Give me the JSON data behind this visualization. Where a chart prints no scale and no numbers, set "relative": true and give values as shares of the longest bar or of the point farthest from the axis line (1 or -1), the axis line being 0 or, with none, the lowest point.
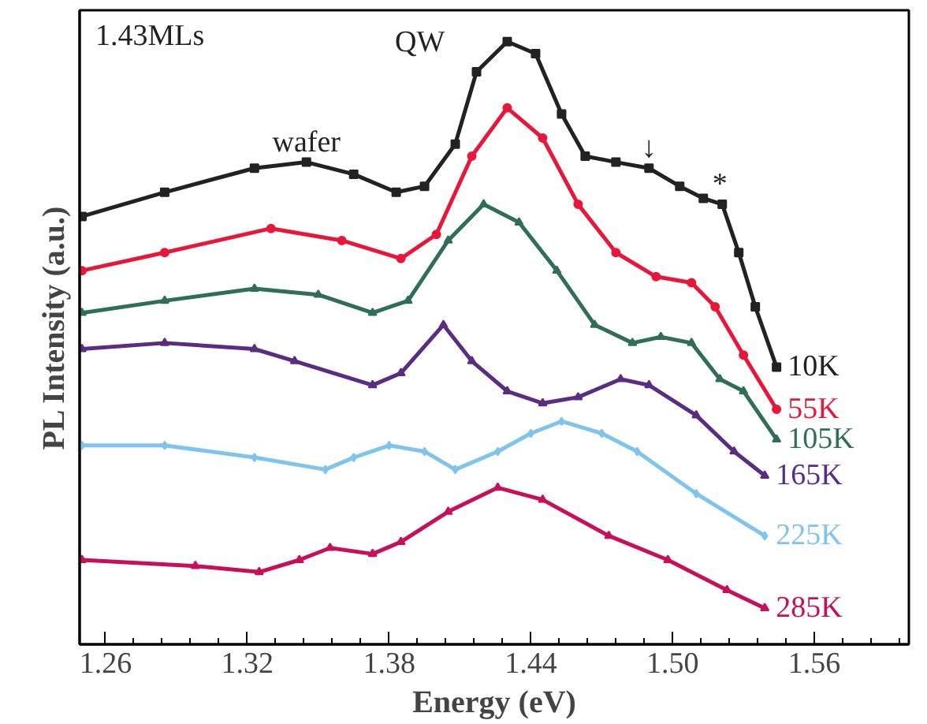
{
  "chart_data": {
    "type": "line",
    "xlabel": "Energy (eV)",
    "ylabel": "PL Intensity (a.u.)",
    "relative": true,
    "tick_labels": "x",
    "xlim": [
      1.249,
      1.6
    ],
    "xticks": [
      1.26,
      1.32,
      1.38,
      1.44,
      {
        "value": 1.5,
        "label": "1.50"
      },
      1.56
    ],
    "annotations": [
      "1.43MLs",
      "QW",
      {
        "text": "wafer",
        "x": 1.345,
        "y": 0.8
      },
      {
        "text": "↓",
        "x": 1.49,
        "y": 0.79
      },
      {
        "text": "*",
        "x": 1.52,
        "y": 0.73
      }
    ],
    "series": [
      {
        "name": "10K",
        "color": "#222222",
        "marker": "square",
        "x": [
          1.25,
          1.285,
          1.323,
          1.345,
          1.365,
          1.383,
          1.395,
          1.408,
          1.417,
          1.43,
          1.442,
          1.453,
          1.463,
          1.476,
          1.49,
          1.503,
          1.513,
          1.521,
          1.528,
          1.535,
          1.544
        ],
        "values": [
          0.71,
          0.75,
          0.79,
          0.8,
          0.78,
          0.75,
          0.76,
          0.83,
          0.95,
          1.0,
          0.98,
          0.88,
          0.81,
          0.8,
          0.79,
          0.76,
          0.74,
          0.73,
          0.65,
          0.56,
          0.46
        ]
      },
      {
        "name": "55K",
        "color": "#e8173a",
        "marker": "circle",
        "x": [
          1.25,
          1.285,
          1.33,
          1.36,
          1.385,
          1.4,
          1.415,
          1.43,
          1.445,
          1.46,
          1.476,
          1.493,
          1.508,
          1.518,
          1.53,
          1.544
        ],
        "values": [
          0.62,
          0.65,
          0.69,
          0.67,
          0.64,
          0.68,
          0.81,
          0.89,
          0.84,
          0.73,
          0.65,
          0.61,
          0.6,
          0.56,
          0.48,
          0.39
        ]
      },
      {
        "name": "105K",
        "color": "#2e6e5a",
        "marker": "triangle",
        "x": [
          1.25,
          1.285,
          1.323,
          1.35,
          1.373,
          1.388,
          1.405,
          1.42,
          1.435,
          1.451,
          1.467,
          1.483,
          1.495,
          1.508,
          1.52,
          1.53,
          1.544
        ],
        "values": [
          0.55,
          0.57,
          0.59,
          0.58,
          0.55,
          0.57,
          0.67,
          0.73,
          0.7,
          0.62,
          0.53,
          0.5,
          0.51,
          0.5,
          0.44,
          0.42,
          0.34
        ]
      },
      {
        "name": "165K",
        "color": "#5a2d82",
        "marker": "triangle",
        "x": [
          1.25,
          1.285,
          1.323,
          1.34,
          1.373,
          1.385,
          1.403,
          1.415,
          1.43,
          1.445,
          1.46,
          1.478,
          1.49,
          1.51,
          1.526,
          1.539
        ],
        "values": [
          0.49,
          0.5,
          0.49,
          0.47,
          0.43,
          0.45,
          0.53,
          0.47,
          0.42,
          0.4,
          0.41,
          0.44,
          0.43,
          0.38,
          0.32,
          0.28
        ]
      },
      {
        "name": "225K",
        "color": "#7fc4ea",
        "marker": "diamond",
        "x": [
          1.25,
          1.285,
          1.323,
          1.353,
          1.365,
          1.38,
          1.395,
          1.408,
          1.426,
          1.44,
          1.453,
          1.47,
          1.485,
          1.51,
          1.539
        ],
        "values": [
          0.33,
          0.33,
          0.31,
          0.29,
          0.31,
          0.33,
          0.32,
          0.29,
          0.32,
          0.35,
          0.37,
          0.35,
          0.32,
          0.25,
          0.18
        ]
      },
      {
        "name": "285K",
        "color": "#c8105a",
        "marker": "triangle",
        "x": [
          1.25,
          1.298,
          1.325,
          1.342,
          1.355,
          1.373,
          1.385,
          1.405,
          1.426,
          1.445,
          1.473,
          1.498,
          1.523,
          1.539
        ],
        "values": [
          0.14,
          0.13,
          0.12,
          0.14,
          0.16,
          0.15,
          0.17,
          0.22,
          0.26,
          0.24,
          0.18,
          0.14,
          0.09,
          0.06
        ]
      }
    ]
  }
}
